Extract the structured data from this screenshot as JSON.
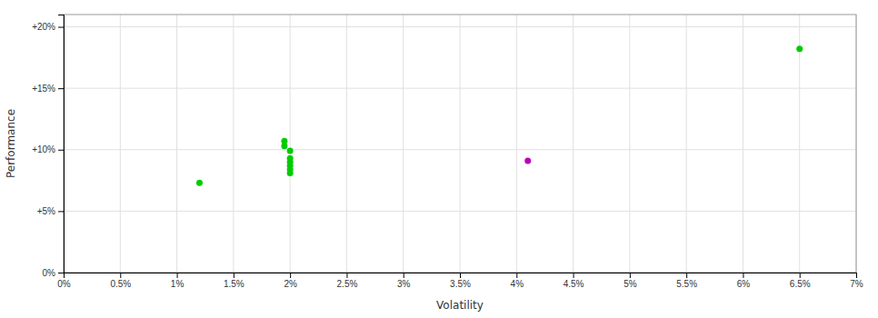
{
  "chart_data": {
    "type": "scatter",
    "xlabel": "Volatility",
    "ylabel": "Performance",
    "series": [
      {
        "color": "#00cc00",
        "x": [
          0.012,
          0.0195,
          0.0195,
          0.02,
          0.02,
          0.02,
          0.02,
          0.02,
          0.02,
          0.065
        ],
        "values": [
          0.073,
          0.107,
          0.103,
          0.099,
          0.093,
          0.09,
          0.087,
          0.084,
          0.081,
          0.182
        ]
      },
      {
        "color": "#bb00bb",
        "x": [
          0.041
        ],
        "values": [
          0.091
        ]
      }
    ],
    "xlim": [
      0.0,
      0.07
    ],
    "ylim": [
      0.0,
      0.21
    ],
    "xticks": [
      {
        "value": 0,
        "label": "0%"
      },
      {
        "value": 0.005,
        "label": "0.5%"
      },
      {
        "value": 0.01,
        "label": "1%"
      },
      {
        "value": 0.015,
        "label": "1.5%"
      },
      {
        "value": 0.02,
        "label": "2%"
      },
      {
        "value": 0.025,
        "label": "2.5%"
      },
      {
        "value": 0.03,
        "label": "3%"
      },
      {
        "value": 0.035,
        "label": "3.5%"
      },
      {
        "value": 0.04,
        "label": "4%"
      },
      {
        "value": 0.045,
        "label": "4.5%"
      },
      {
        "value": 0.05,
        "label": "5%"
      },
      {
        "value": 0.055,
        "label": "5.5%"
      },
      {
        "value": 0.06,
        "label": "6%"
      },
      {
        "value": 0.065,
        "label": "6.5%"
      },
      {
        "value": 0.07,
        "label": "7%"
      }
    ],
    "yticks": [
      {
        "value": 0,
        "label": "0%"
      },
      {
        "value": 0.05,
        "label": "+5%"
      },
      {
        "value": 0.1,
        "label": "+10%"
      },
      {
        "value": 0.15,
        "label": "+15%"
      },
      {
        "value": 0.2,
        "label": "+20%"
      }
    ],
    "grid": true
  }
}
